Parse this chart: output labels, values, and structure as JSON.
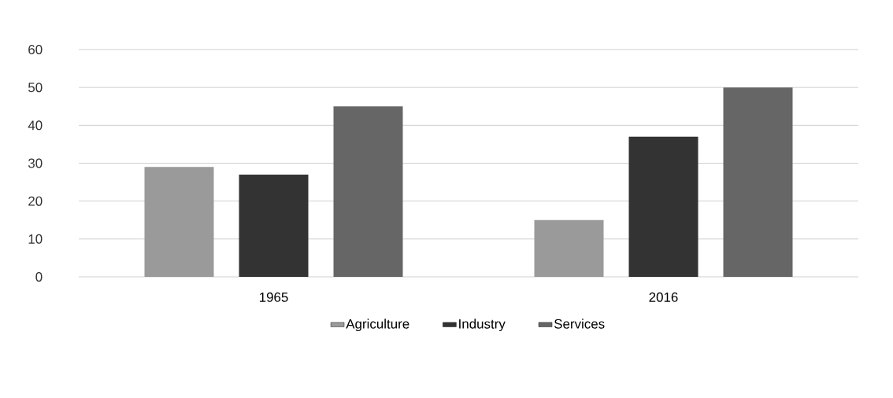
{
  "chart_data": {
    "type": "bar",
    "categories": [
      "1965",
      "2016"
    ],
    "series": [
      {
        "name": "Agriculture",
        "color": "#9a9a9a",
        "values": [
          29,
          15
        ]
      },
      {
        "name": "Industry",
        "color": "#333333",
        "values": [
          27,
          37
        ]
      },
      {
        "name": "Services",
        "color": "#666666",
        "values": [
          45,
          50
        ]
      }
    ],
    "ylim": [
      0,
      60
    ],
    "yticks": [
      0,
      10,
      20,
      30,
      40,
      50,
      60
    ],
    "grid": "y",
    "legend": "bottom"
  }
}
